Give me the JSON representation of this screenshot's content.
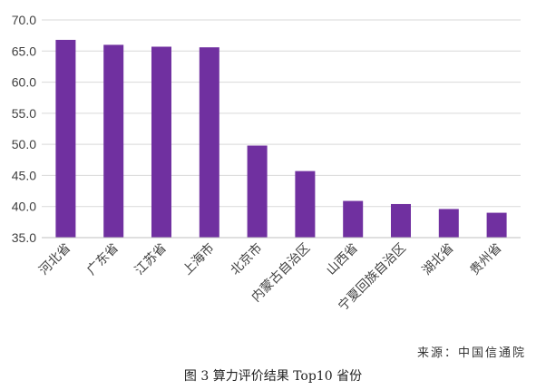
{
  "chart_data": {
    "type": "bar",
    "categories": [
      "河北省",
      "广东省",
      "江苏省",
      "上海市",
      "北京市",
      "内蒙古自治区",
      "山西省",
      "宁夏回族自治区",
      "湖北省",
      "贵州省"
    ],
    "values": [
      66.8,
      66.0,
      65.7,
      65.6,
      49.8,
      45.7,
      40.9,
      40.4,
      39.6,
      39.0
    ],
    "ylim": [
      35,
      70
    ],
    "yticks": [
      "35.0",
      "40.0",
      "45.0",
      "50.0",
      "55.0",
      "60.0",
      "65.0",
      "70.0"
    ],
    "grid": true,
    "bar_color": "#7030a0"
  },
  "source": "来源：中国信通院",
  "caption": "图 3 算力评价结果 Top10 省份"
}
